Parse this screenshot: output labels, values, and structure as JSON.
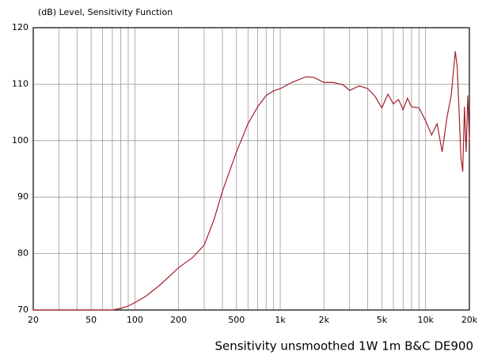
{
  "chart_data": {
    "type": "line",
    "title": "(dB)  Level,  Sensitivity Function",
    "caption": "Sensitivity unsmoothed   1W 1m    B&C DE900",
    "x_scale": "log",
    "xlim": [
      20,
      20000
    ],
    "ylim": [
      70,
      120
    ],
    "yticks": [
      70,
      80,
      90,
      100,
      110,
      120
    ],
    "xticks": [
      20,
      50,
      100,
      200,
      500,
      {
        "value": 1000,
        "label": "1k"
      },
      {
        "value": 2000,
        "label": "2k"
      },
      {
        "value": 5000,
        "label": "5k"
      },
      {
        "value": 10000,
        "label": "10k"
      },
      {
        "value": 20000,
        "label": "20k"
      }
    ],
    "x_minor_grid": [
      30,
      40,
      60,
      70,
      80,
      90,
      300,
      400,
      600,
      700,
      800,
      900,
      3000,
      4000,
      6000,
      7000,
      8000,
      9000
    ],
    "grid": true,
    "series": [
      {
        "color": "#a3202a",
        "x": [
          20,
          40,
          70,
          80,
          90,
          100,
          120,
          150,
          200,
          250,
          300,
          350,
          400,
          500,
          600,
          700,
          800,
          900,
          1000,
          1200,
          1500,
          1700,
          2000,
          2300,
          2700,
          3000,
          3500,
          4000,
          4500,
          5000,
          5500,
          6000,
          6500,
          7000,
          7500,
          8000,
          9000,
          10000,
          11000,
          12000,
          13000,
          14000,
          15000,
          16000,
          16500,
          17000,
          17500,
          18000,
          18500,
          19000,
          19500,
          20000
        ],
        "values": [
          70,
          70,
          70,
          70.3,
          70.7,
          71.3,
          72.5,
          74.5,
          77.5,
          79.3,
          81.5,
          86,
          91,
          98,
          103,
          106,
          108,
          108.8,
          109.2,
          110.3,
          111.3,
          111.2,
          110.3,
          110.3,
          109.9,
          108.9,
          109.7,
          109.2,
          107.8,
          105.8,
          108.2,
          106.5,
          107.3,
          105.5,
          107.5,
          106,
          105.8,
          103.5,
          101,
          103,
          98,
          104,
          108,
          115.8,
          113,
          105,
          97,
          94.5,
          106,
          98,
          108,
          100
        ]
      }
    ]
  }
}
